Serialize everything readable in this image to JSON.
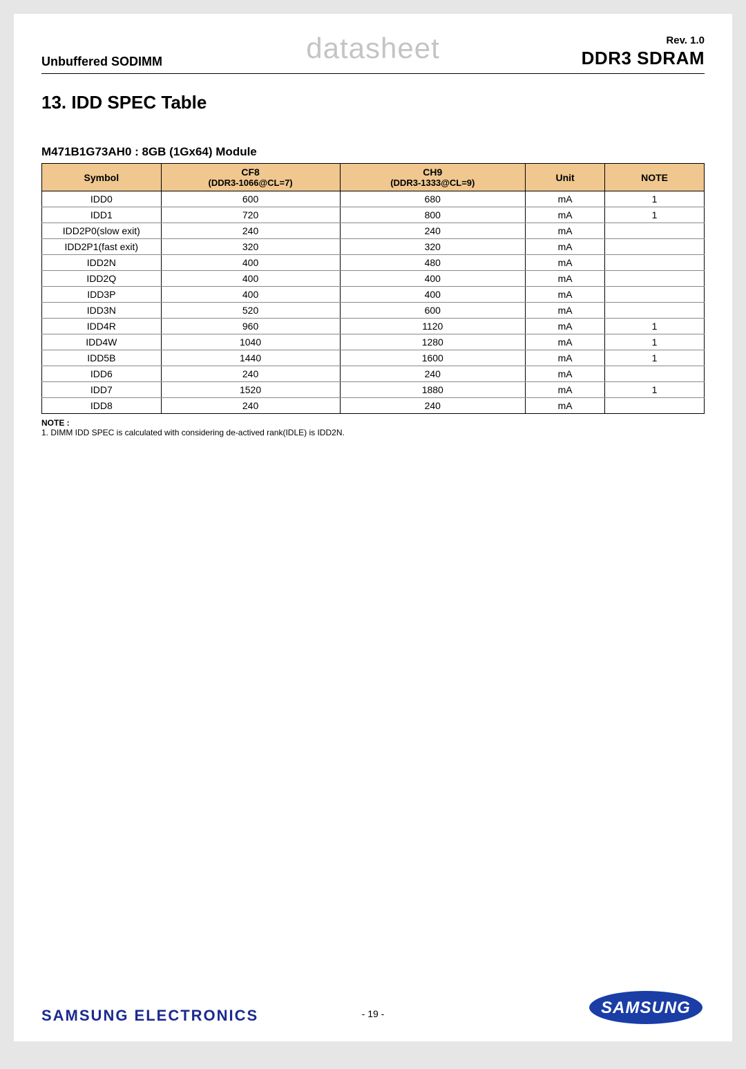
{
  "header": {
    "left": "Unbuffered SODIMM",
    "center": "datasheet",
    "rev": "Rev. 1.0",
    "product": "DDR3 SDRAM"
  },
  "section_title": "13. IDD SPEC Table",
  "subtitle": "M471B1G73AH0 : 8GB (1Gx64) Module",
  "table": {
    "columns": [
      {
        "line1": "Symbol",
        "line2": "",
        "width": "18%"
      },
      {
        "line1": "CF8",
        "line2": "(DDR3-1066@CL=7)",
        "width": "27%"
      },
      {
        "line1": "CH9",
        "line2": "(DDR3-1333@CL=9)",
        "width": "28%"
      },
      {
        "line1": "Unit",
        "line2": "",
        "width": "12%"
      },
      {
        "line1": "NOTE",
        "line2": "",
        "width": "15%"
      }
    ],
    "header_bg": "#efc78f",
    "rows": [
      [
        "IDD0",
        "600",
        "680",
        "mA",
        "1"
      ],
      [
        "IDD1",
        "720",
        "800",
        "mA",
        "1"
      ],
      [
        "IDD2P0(slow exit)",
        "240",
        "240",
        "mA",
        ""
      ],
      [
        "IDD2P1(fast exit)",
        "320",
        "320",
        "mA",
        ""
      ],
      [
        "IDD2N",
        "400",
        "480",
        "mA",
        ""
      ],
      [
        "IDD2Q",
        "400",
        "400",
        "mA",
        ""
      ],
      [
        "IDD3P",
        "400",
        "400",
        "mA",
        ""
      ],
      [
        "IDD3N",
        "520",
        "600",
        "mA",
        ""
      ],
      [
        "IDD4R",
        "960",
        "1120",
        "mA",
        "1"
      ],
      [
        "IDD4W",
        "1040",
        "1280",
        "mA",
        "1"
      ],
      [
        "IDD5B",
        "1440",
        "1600",
        "mA",
        "1"
      ],
      [
        "IDD6",
        "240",
        "240",
        "mA",
        ""
      ],
      [
        "IDD7",
        "1520",
        "1880",
        "mA",
        "1"
      ],
      [
        "IDD8",
        "240",
        "240",
        "mA",
        ""
      ]
    ]
  },
  "note": {
    "label": "NOTE :",
    "text": "1. DIMM IDD SPEC is calculated with considering de-actived rank(IDLE) is IDD2N."
  },
  "footer": {
    "left": "SAMSUNG ELECTRONICS",
    "center": "- 19 -",
    "logo_text": "SAMSUNG",
    "logo_fill": "#1a3da6"
  }
}
